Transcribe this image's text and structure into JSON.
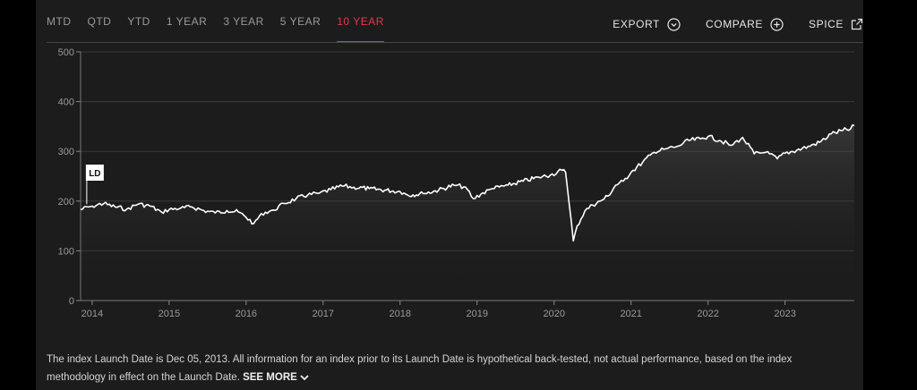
{
  "tabs": [
    {
      "label": "MTD",
      "active": false
    },
    {
      "label": "QTD",
      "active": false
    },
    {
      "label": "YTD",
      "active": false
    },
    {
      "label": "1 YEAR",
      "active": false
    },
    {
      "label": "3 YEAR",
      "active": false
    },
    {
      "label": "5 YEAR",
      "active": false
    },
    {
      "label": "10 YEAR",
      "active": true
    }
  ],
  "actions": {
    "export_label": "EXPORT",
    "compare_label": "COMPARE",
    "spice_label": "SPICE"
  },
  "note": {
    "text": "The index Launch Date is Dec 05, 2013. All information for an index prior to its Launch Date is hypothetical back-tested, not actual performance, based on the index methodology in effect on the Launch Date.",
    "see_more_label": "SEE MORE"
  },
  "colors": {
    "accent": "#e8374a",
    "line": "#ffffff",
    "background": "#1c1c1d"
  },
  "chart_data": {
    "type": "line",
    "title": "",
    "xlabel": "",
    "ylabel": "",
    "ylim": [
      0,
      500
    ],
    "yticks": [
      0,
      100,
      200,
      300,
      400,
      500
    ],
    "xlim": [
      2013.85,
      2023.9
    ],
    "xtick_labels": [
      "2014",
      "2015",
      "2016",
      "2017",
      "2018",
      "2019",
      "2020",
      "2021",
      "2022",
      "2023"
    ],
    "grid": true,
    "marker": {
      "label": "LD",
      "x": 2013.93
    },
    "series": [
      {
        "name": "",
        "x": [
          2013.85,
          2014.0,
          2014.15,
          2014.3,
          2014.45,
          2014.6,
          2014.75,
          2014.9,
          2015.0,
          2015.15,
          2015.3,
          2015.45,
          2015.6,
          2015.75,
          2015.9,
          2016.0,
          2016.1,
          2016.2,
          2016.35,
          2016.5,
          2016.65,
          2016.8,
          2016.95,
          2017.1,
          2017.25,
          2017.4,
          2017.6,
          2017.8,
          2018.0,
          2018.1,
          2018.3,
          2018.5,
          2018.7,
          2018.85,
          2018.95,
          2019.05,
          2019.2,
          2019.4,
          2019.6,
          2019.8,
          2019.95,
          2020.1,
          2020.15,
          2020.2,
          2020.25,
          2020.3,
          2020.4,
          2020.5,
          2020.6,
          2020.7,
          2020.8,
          2020.9,
          2021.0,
          2021.15,
          2021.3,
          2021.45,
          2021.6,
          2021.75,
          2021.9,
          2022.0,
          2022.15,
          2022.3,
          2022.45,
          2022.6,
          2022.75,
          2022.9,
          2023.0,
          2023.15,
          2023.3,
          2023.45,
          2023.6,
          2023.75,
          2023.85,
          2023.9
        ],
        "y": [
          183,
          190,
          195,
          188,
          184,
          194,
          190,
          178,
          183,
          186,
          188,
          181,
          176,
          181,
          178,
          167,
          155,
          175,
          182,
          195,
          205,
          212,
          216,
          223,
          230,
          228,
          225,
          222,
          219,
          212,
          215,
          222,
          232,
          228,
          205,
          214,
          225,
          232,
          240,
          248,
          252,
          262,
          258,
          190,
          120,
          150,
          180,
          192,
          200,
          210,
          232,
          240,
          258,
          278,
          298,
          305,
          310,
          322,
          325,
          330,
          322,
          312,
          328,
          295,
          298,
          285,
          296,
          302,
          310,
          318,
          335,
          342,
          345,
          352
        ]
      }
    ]
  }
}
